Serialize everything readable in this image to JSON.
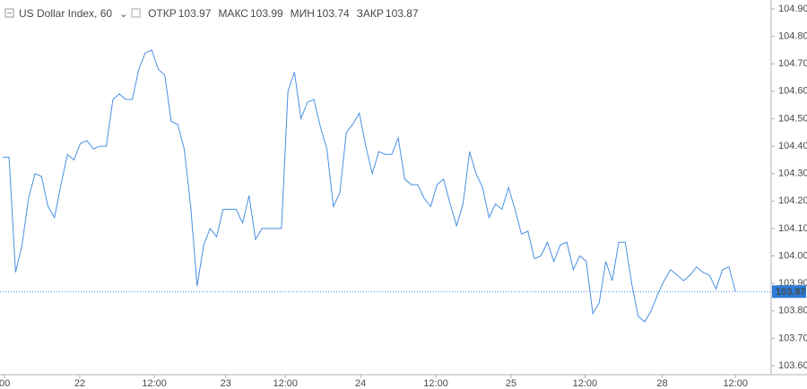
{
  "chart_data": {
    "type": "line",
    "title": "US Dollar Index, 60",
    "ohlc": [
      {
        "name": "ОТКР",
        "value": 103.97
      },
      {
        "name": "МАКС",
        "value": 103.99
      },
      {
        "name": "МИН",
        "value": 103.74
      },
      {
        "name": "ЗАКР",
        "value": 103.87
      }
    ],
    "last_price": 103.87,
    "color": "#4a90e2",
    "values": [
      104.36,
      104.36,
      103.94,
      104.04,
      104.21,
      104.3,
      104.29,
      104.18,
      104.14,
      104.26,
      104.37,
      104.35,
      104.41,
      104.42,
      104.39,
      104.4,
      104.4,
      104.57,
      104.59,
      104.57,
      104.57,
      104.68,
      104.74,
      104.75,
      104.68,
      104.66,
      104.49,
      104.48,
      104.39,
      104.18,
      103.89,
      104.04,
      104.1,
      104.07,
      104.17,
      104.17,
      104.17,
      104.12,
      104.22,
      104.06,
      104.1,
      104.1,
      104.1,
      104.1,
      104.6,
      104.67,
      104.5,
      104.56,
      104.57,
      104.47,
      104.39,
      104.18,
      104.23,
      104.45,
      104.48,
      104.52,
      104.4,
      104.3,
      104.38,
      104.37,
      104.37,
      104.43,
      104.28,
      104.26,
      104.26,
      104.21,
      104.18,
      104.26,
      104.28,
      104.19,
      104.11,
      104.19,
      104.38,
      104.3,
      104.25,
      104.14,
      104.19,
      104.17,
      104.25,
      104.17,
      104.08,
      104.09,
      103.99,
      104.0,
      104.05,
      103.98,
      104.04,
      104.05,
      103.95,
      104.0,
      103.98,
      103.79,
      103.83,
      103.98,
      103.91,
      104.05,
      104.05,
      103.9,
      103.78,
      103.76,
      103.8,
      103.86,
      103.91,
      103.95,
      103.93,
      103.91,
      103.93,
      103.96,
      103.94,
      103.93,
      103.88,
      103.95,
      103.96,
      103.87
    ],
    "xlim": [
      -0.4,
      118.5
    ],
    "xticks": [
      {
        "value": 0.3,
        "label": "00"
      },
      {
        "value": 11.9,
        "label": "22"
      },
      {
        "value": 23.4,
        "label": "12:00"
      },
      {
        "value": 34.4,
        "label": "23"
      },
      {
        "value": 43.6,
        "label": "12:00"
      },
      {
        "value": 55.2,
        "label": "24"
      },
      {
        "value": 66.8,
        "label": "12:00"
      },
      {
        "value": 78.4,
        "label": "25"
      },
      {
        "value": 89.8,
        "label": "12:00"
      },
      {
        "value": 101.7,
        "label": "28"
      },
      {
        "value": 113.0,
        "label": "12:00"
      }
    ],
    "ylim": [
      103.5675,
      104.9325
    ],
    "yticks": [
      {
        "value": 103.6,
        "label": "103.60"
      },
      {
        "value": 103.7,
        "label": "103.70"
      },
      {
        "value": 103.8,
        "label": "103.80"
      },
      {
        "value": 103.9,
        "label": "103.90"
      },
      {
        "value": 104.0,
        "label": "104.00"
      },
      {
        "value": 104.1,
        "label": "104.10"
      },
      {
        "value": 104.2,
        "label": "104.20"
      },
      {
        "value": 104.3,
        "label": "104.30"
      },
      {
        "value": 104.4,
        "label": "104.40"
      },
      {
        "value": 104.5,
        "label": "104.50"
      },
      {
        "value": 104.6,
        "label": "104.60"
      },
      {
        "value": 104.7,
        "label": "104.70"
      },
      {
        "value": 104.8,
        "label": "104.80"
      },
      {
        "value": 104.9,
        "label": "104.90"
      }
    ],
    "y_axis_side": "right",
    "grid": false
  }
}
